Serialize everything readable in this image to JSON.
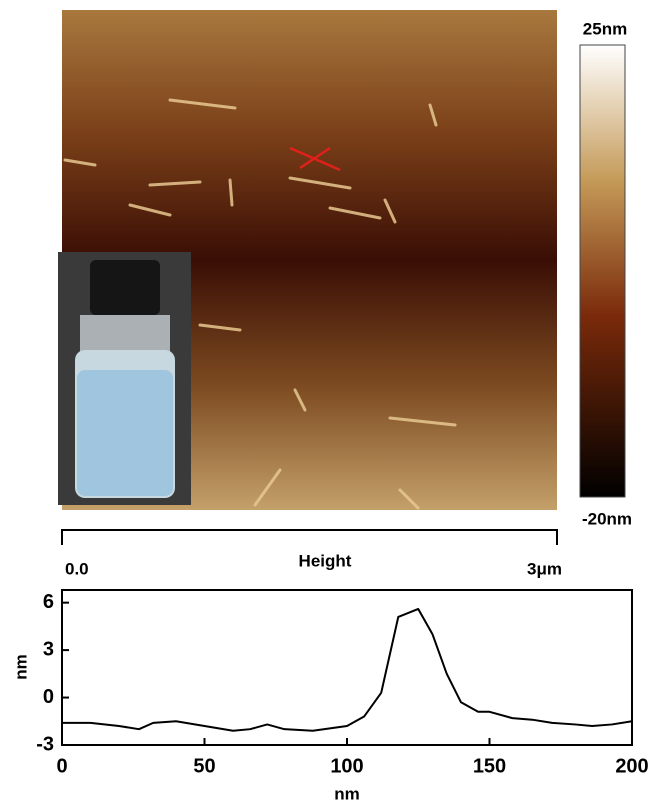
{
  "afm_image": {
    "colorbar": {
      "max_label": "25nm",
      "min_label": "-20nm"
    },
    "scale_bar": {
      "start_label": "0.0",
      "title": "Height",
      "end_label": "3μm"
    }
  },
  "chart_data": {
    "type": "line",
    "xlabel": "nm",
    "ylabel": "nm",
    "color": "#000000",
    "x": [
      0,
      10,
      20,
      27,
      32,
      40,
      50,
      60,
      66,
      72,
      78,
      88,
      100,
      106,
      112,
      118,
      125,
      130,
      135,
      140,
      146,
      150,
      158,
      165,
      172,
      180,
      186,
      193,
      200
    ],
    "values": [
      -1.6,
      -1.6,
      -1.8,
      -2.0,
      -1.6,
      -1.5,
      -1.8,
      -2.1,
      -2.0,
      -1.7,
      -2.0,
      -2.1,
      -1.8,
      -1.2,
      0.3,
      5.1,
      5.6,
      4.0,
      1.5,
      -0.3,
      -0.9,
      -0.9,
      -1.3,
      -1.4,
      -1.6,
      -1.7,
      -1.8,
      -1.7,
      -1.5
    ],
    "xlim": [
      0,
      200
    ],
    "ylim": [
      -3,
      6.8
    ],
    "xticks": [
      0,
      50,
      100,
      150,
      200
    ],
    "yticks": [
      -3,
      0,
      3,
      6
    ]
  }
}
